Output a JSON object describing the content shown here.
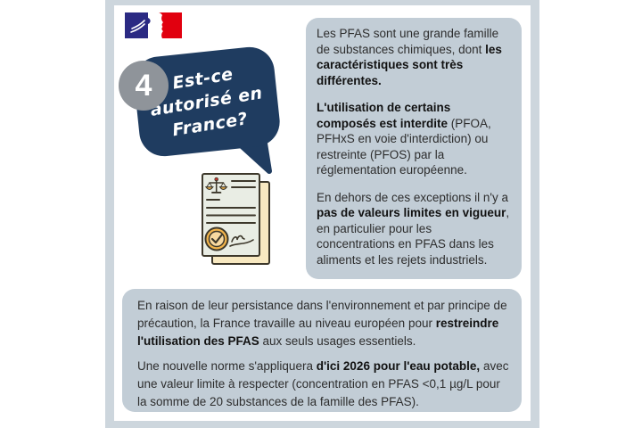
{
  "colors": {
    "frame": "#cdd6dd",
    "box": "#c2cdd6",
    "navy": "#1f3c60",
    "badge": "#8f949a",
    "text": "#2d2d2d",
    "bold": "#111111",
    "logo_blue": "#2b2a83",
    "logo_red": "#e1000f",
    "paper_cream": "#f8e9c1",
    "paper_sage": "#e9ede4",
    "ink": "#3d382b",
    "seal_gold": "#f2b44c",
    "seal_inner": "#f8d9a1",
    "seal_red": "#c53631"
  },
  "logo": {
    "name": "french-republic-flag-logo"
  },
  "question": {
    "number": "4",
    "bubble_lines": [
      "Est-ce",
      "autorisé en",
      "France?"
    ]
  },
  "illustration": {
    "name": "legal-document-with-seal",
    "icons": [
      "scales-of-justice-icon",
      "approval-seal-icon",
      "signature-icon"
    ]
  },
  "right_box": {
    "paragraphs": [
      [
        {
          "t": "Les PFAS sont une grande famille de substances chimiques, dont ",
          "b": false
        },
        {
          "t": "les caractéristiques sont très différentes.",
          "b": true
        }
      ],
      [
        {
          "t": "L'utilisation de certains composés est interdite",
          "b": true
        },
        {
          "t": " (PFOA, PFHxS en voie d'interdiction) ou restreinte (PFOS) par la réglementation européenne.",
          "b": false
        }
      ],
      [
        {
          "t": "En dehors de ces exceptions il n'y a ",
          "b": false
        },
        {
          "t": "pas de valeurs limites en vigueur",
          "b": true
        },
        {
          "t": ", en particulier pour les concentrations en PFAS dans les aliments et les rejets industriels.",
          "b": false
        }
      ]
    ]
  },
  "bottom_box": {
    "paragraphs": [
      [
        {
          "t": "En raison de leur persistance dans l'environnement et par principe de précaution, la France travaille au niveau européen pour ",
          "b": false
        },
        {
          "t": "restreindre l'utilisation des PFAS",
          "b": true
        },
        {
          "t": " aux seuls usages essentiels.",
          "b": false
        }
      ],
      [
        {
          "t": "Une nouvelle norme s'appliquera ",
          "b": false
        },
        {
          "t": "d'ici 2026 pour l'eau potable,",
          "b": true
        },
        {
          "t": " avec une valeur limite à respecter (concentration en PFAS <0,1 µg/L pour la somme de 20 substances de la famille des PFAS).",
          "b": false
        }
      ]
    ]
  }
}
